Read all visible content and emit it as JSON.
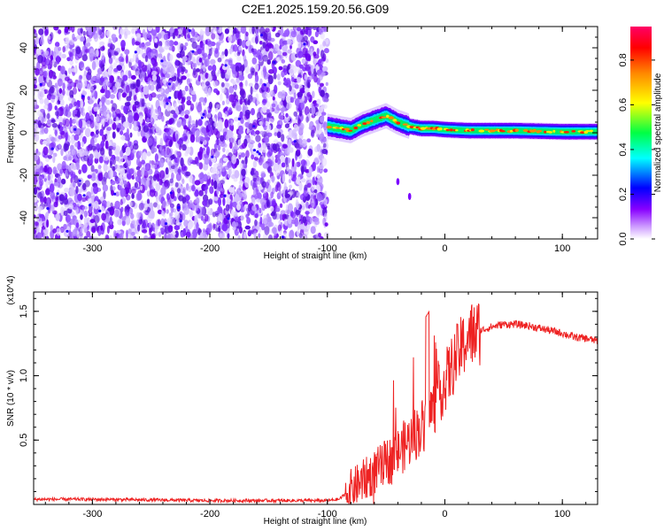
{
  "title": "C2E1.2025.159.20.56.G09",
  "colors": {
    "snr_line": "#ee2222",
    "axis": "#000000"
  },
  "chart_data": [
    {
      "type": "heatmap",
      "title": "C2E1.2025.159.20.56.G09",
      "xlabel": "Height of straight line (km)",
      "ylabel": "Frequency (Hz)",
      "xlim": [
        -350,
        130
      ],
      "ylim": [
        -50,
        50
      ],
      "xticks": [
        -300,
        -200,
        -100,
        0,
        100
      ],
      "yticks": [
        -40,
        -20,
        0,
        20,
        40
      ],
      "colorbar": {
        "label": "Normalized spectral amplitude",
        "range": [
          0,
          0.95
        ],
        "ticks": [
          0.0,
          0.2,
          0.4,
          0.6,
          0.8
        ],
        "colormap": [
          "#ffffff",
          "#8800ff",
          "#0000ff",
          "#00ffff",
          "#00ff00",
          "#ffff00",
          "#ff8800",
          "#ff0000",
          "#ff0066"
        ]
      },
      "regions": [
        {
          "name": "noise",
          "x": [
            -350,
            -100
          ],
          "y": [
            -50,
            50
          ],
          "amplitude": 0.1
        },
        {
          "name": "signal band",
          "x": [
            -100,
            130
          ],
          "center_hz": [
            [
              -100,
              3
            ],
            [
              -90,
              2
            ],
            [
              -80,
              1
            ],
            [
              -70,
              4
            ],
            [
              -60,
              6
            ],
            [
              -50,
              8
            ],
            [
              -40,
              5
            ],
            [
              -30,
              3
            ],
            [
              -20,
              2
            ],
            [
              -10,
              2
            ],
            [
              0,
              1.5
            ],
            [
              20,
              1
            ],
            [
              60,
              1
            ],
            [
              100,
              0.5
            ],
            [
              130,
              0.5
            ]
          ],
          "amplitude": 0.8
        }
      ]
    },
    {
      "type": "line",
      "xlabel": "Height of straight line (km)",
      "ylabel": "SNR (10 * v/v)",
      "yscale_label": "(x10^4)",
      "xlim": [
        -350,
        130
      ],
      "ylim": [
        0,
        1.65
      ],
      "xticks": [
        -300,
        -200,
        -100,
        0,
        100
      ],
      "yticks": [
        0.5,
        1.0,
        1.5
      ],
      "ytick_labels": [
        "0.5",
        "1.0",
        "1.5"
      ],
      "series": [
        {
          "x": [
            -350,
            -300,
            -250,
            -200,
            -150,
            -100,
            -90,
            -80,
            -70,
            -60,
            -50,
            -40,
            -30,
            -20,
            -10,
            0,
            10,
            20,
            30,
            40,
            50,
            60,
            70,
            80,
            90,
            100,
            110,
            120,
            130
          ],
          "y": [
            0.04,
            0.04,
            0.035,
            0.03,
            0.03,
            0.03,
            0.04,
            0.12,
            0.18,
            0.25,
            0.32,
            0.4,
            0.5,
            0.6,
            0.75,
            0.95,
            1.15,
            1.3,
            1.35,
            1.38,
            1.4,
            1.4,
            1.39,
            1.37,
            1.35,
            1.33,
            1.3,
            1.29,
            1.27
          ]
        }
      ]
    }
  ]
}
